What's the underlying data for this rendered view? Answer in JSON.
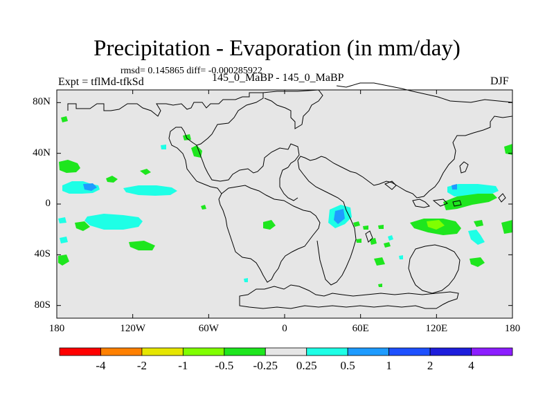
{
  "title": "Precipitation - Evaporation (in mm/day)",
  "stats": "rmsd= 0.145865 diff= -0.000285922",
  "experiment": "Expt = tflMd-tfkSd",
  "subtitle": "145_0_MaBP - 145_0_MaBP",
  "season": "DJF",
  "map": {
    "projection": "cylindrical-equidistant",
    "lon_range": [
      -180,
      180
    ],
    "lat_range": [
      -90,
      90
    ],
    "background_color": "#e6e6e6",
    "coastline_color": "#000000",
    "lat_ticks": [
      {
        "value": 80,
        "label": "80N"
      },
      {
        "value": 40,
        "label": "40N"
      },
      {
        "value": 0,
        "label": "0"
      },
      {
        "value": -40,
        "label": "40S"
      },
      {
        "value": -80,
        "label": "80S"
      }
    ],
    "lon_ticks": [
      {
        "value": -180,
        "label": "180"
      },
      {
        "value": -120,
        "label": "120W"
      },
      {
        "value": -60,
        "label": "60W"
      },
      {
        "value": 0,
        "label": "0"
      },
      {
        "value": 60,
        "label": "60E"
      },
      {
        "value": 120,
        "label": "120E"
      },
      {
        "value": 180,
        "label": "180"
      }
    ]
  },
  "colorbar": {
    "colors": [
      "#ff0000",
      "#ff8000",
      "#e6e600",
      "#80ff00",
      "#1ee61e",
      "#e6e6e6",
      "#1effe6",
      "#1e9bff",
      "#1e50ff",
      "#1e1edc",
      "#8c1eff"
    ],
    "levels": [
      "-4",
      "-2",
      "-1",
      "-0.5",
      "-0.25",
      "0.25",
      "0.5",
      "1",
      "2",
      "4"
    ]
  }
}
